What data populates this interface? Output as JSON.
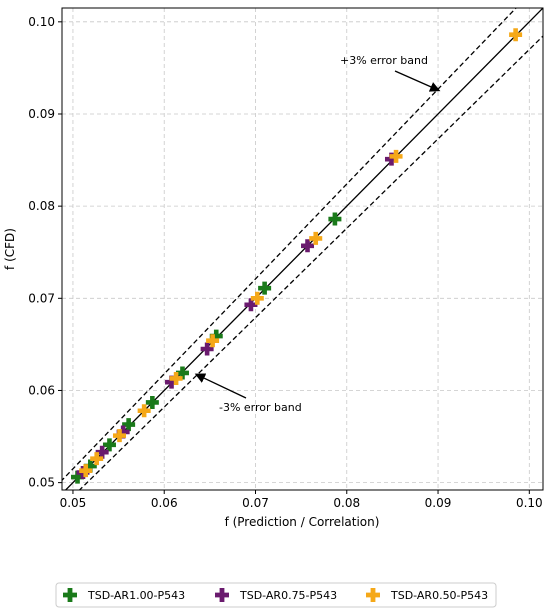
{
  "chart_data": {
    "type": "scatter",
    "xlabel": "f (Prediction / Correlation)",
    "ylabel": "f (CFD)",
    "xlim": [
      0.0488,
      0.1015
    ],
    "ylim": [
      0.0492,
      0.1015
    ],
    "x_ticks": [
      "0.05",
      "0.06",
      "0.07",
      "0.08",
      "0.09",
      "0.10"
    ],
    "y_ticks": [
      "0.05",
      "0.06",
      "0.07",
      "0.08",
      "0.09",
      "0.10"
    ],
    "x_tick_values": [
      0.05,
      0.06,
      0.07,
      0.08,
      0.09,
      0.1
    ],
    "y_tick_values": [
      0.05,
      0.06,
      0.07,
      0.08,
      0.09,
      0.1
    ],
    "grid": true,
    "legend_position": "bottom",
    "reference_lines": [
      {
        "kind": "solid",
        "factor": 1.0
      },
      {
        "kind": "dashed",
        "factor": 1.03
      },
      {
        "kind": "dashed",
        "factor": 0.97
      }
    ],
    "annotations": [
      {
        "text": "+3% error band",
        "points_to": [
          0.09,
          0.0926
        ]
      },
      {
        "text": "-3% error band",
        "points_to": [
          0.0636,
          0.0617
        ]
      }
    ],
    "series": [
      {
        "name": "TSD-AR1.00-P543",
        "color": "#1a7a1a",
        "marker": "plus",
        "points": [
          [
            0.0505,
            0.0506
          ],
          [
            0.0519,
            0.0518
          ],
          [
            0.054,
            0.0541
          ],
          [
            0.0561,
            0.0563
          ],
          [
            0.0587,
            0.0587
          ],
          [
            0.062,
            0.0619
          ],
          [
            0.0657,
            0.0659
          ],
          [
            0.071,
            0.0711
          ],
          [
            0.0787,
            0.0786
          ]
        ]
      },
      {
        "name": "TSD-AR0.75-P543",
        "color": "#6a1a6e",
        "marker": "plus",
        "points": [
          [
            0.0511,
            0.0511
          ],
          [
            0.0532,
            0.0533
          ],
          [
            0.0555,
            0.0555
          ],
          [
            0.0608,
            0.0609
          ],
          [
            0.0647,
            0.0645
          ],
          [
            0.0695,
            0.0693
          ],
          [
            0.0757,
            0.0757
          ],
          [
            0.0849,
            0.0851
          ]
        ]
      },
      {
        "name": "TSD-AR0.50-P543",
        "color": "#f5a818",
        "marker": "plus",
        "points": [
          [
            0.0514,
            0.0513
          ],
          [
            0.0526,
            0.0526
          ],
          [
            0.0551,
            0.0551
          ],
          [
            0.0578,
            0.0578
          ],
          [
            0.0613,
            0.0613
          ],
          [
            0.0653,
            0.0654
          ],
          [
            0.0702,
            0.07
          ],
          [
            0.0766,
            0.0765
          ],
          [
            0.0854,
            0.0854
          ],
          [
            0.0985,
            0.0986
          ]
        ]
      }
    ]
  }
}
